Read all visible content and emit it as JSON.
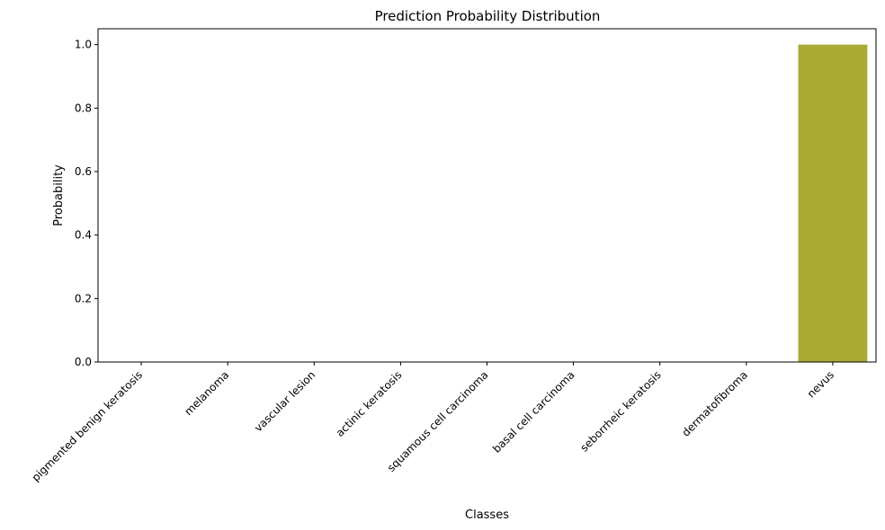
{
  "chart_data": {
    "type": "bar",
    "title": "Prediction Probability Distribution",
    "xlabel": "Classes",
    "ylabel": "Probability",
    "categories": [
      "pigmented benign keratosis",
      "melanoma",
      "vascular lesion",
      "actinic keratosis",
      "squamous cell carcinoma",
      "basal cell carcinoma",
      "seborrheic keratosis",
      "dermatofibroma",
      "nevus"
    ],
    "values": [
      0.0,
      0.0,
      0.0,
      0.0,
      0.0,
      0.0,
      0.0,
      0.0,
      1.0
    ],
    "bar_colors": [
      "#3274a1",
      "#e1812c",
      "#3a923a",
      "#c03d3e",
      "#9372b2",
      "#845b53",
      "#d684bd",
      "#7f7f7f",
      "#a9ab35"
    ],
    "ylim": [
      0,
      1.05
    ],
    "yticks": [
      0.0,
      0.2,
      0.4,
      0.6,
      0.8,
      1.0
    ],
    "ytick_labels": [
      "0.0",
      "0.2",
      "0.4",
      "0.6",
      "0.8",
      "1.0"
    ],
    "grid": false,
    "legend": "none"
  }
}
